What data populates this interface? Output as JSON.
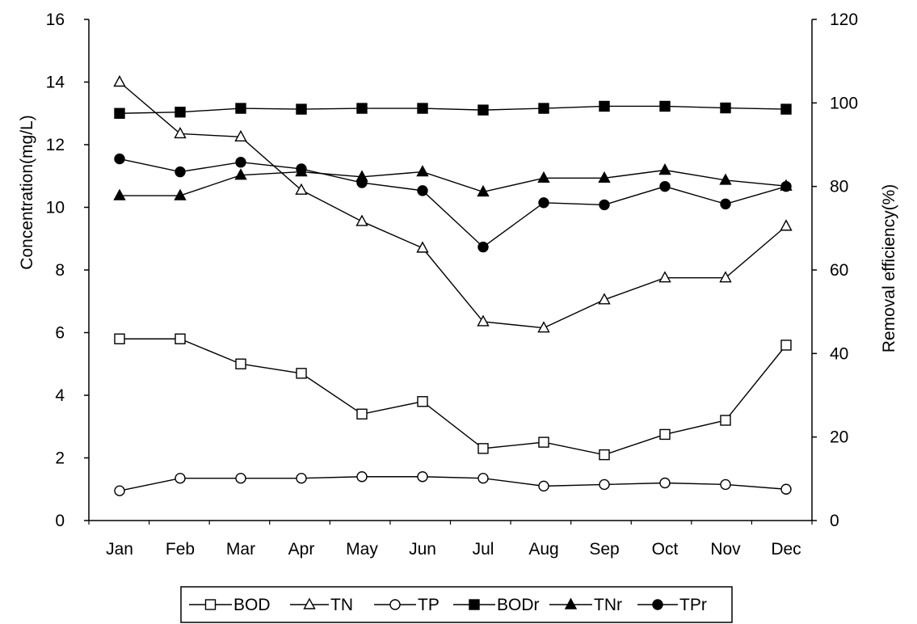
{
  "chart_data": {
    "type": "line",
    "categories": [
      "Jan",
      "Feb",
      "Mar",
      "Apr",
      "May",
      "Jun",
      "Jul",
      "Aug",
      "Sep",
      "Oct",
      "Nov",
      "Dec"
    ],
    "ylabel_left": "Concentration(mg/L)",
    "ylabel_right": "Removal efficiency(%)",
    "ylim_left": [
      0,
      16
    ],
    "yticks_left": [
      0,
      2,
      4,
      6,
      8,
      10,
      12,
      14,
      16
    ],
    "ylim_right": [
      0,
      120
    ],
    "yticks_right": [
      0,
      20,
      40,
      60,
      80,
      100,
      120
    ],
    "grid": false,
    "legend_position": "bottom",
    "series": [
      {
        "name": "BOD",
        "axis": "left",
        "marker": "open-square",
        "values": [
          5.8,
          5.8,
          5.0,
          4.7,
          3.4,
          3.8,
          2.3,
          2.5,
          2.1,
          2.75,
          3.2,
          5.6
        ]
      },
      {
        "name": "TN",
        "axis": "left",
        "marker": "open-triangle",
        "values": [
          14.0,
          12.35,
          12.25,
          10.55,
          9.55,
          8.7,
          6.35,
          6.15,
          7.05,
          7.75,
          7.75,
          9.4
        ]
      },
      {
        "name": "TP",
        "axis": "left",
        "marker": "open-circle",
        "values": [
          0.95,
          1.35,
          1.35,
          1.35,
          1.4,
          1.4,
          1.35,
          1.1,
          1.15,
          1.2,
          1.15,
          1.0
        ]
      },
      {
        "name": "BODr",
        "axis": "right",
        "marker": "filled-square",
        "values": [
          97.5,
          97.8,
          98.7,
          98.5,
          98.7,
          98.7,
          98.3,
          98.7,
          99.2,
          99.2,
          98.8,
          98.5
        ]
      },
      {
        "name": "TNr",
        "axis": "right",
        "marker": "filled-triangle",
        "values": [
          77.8,
          77.8,
          82.7,
          83.5,
          82.3,
          83.5,
          78.7,
          82.0,
          82.0,
          83.9,
          81.5,
          80.1
        ]
      },
      {
        "name": "TPr",
        "axis": "right",
        "marker": "filled-circle",
        "values": [
          86.6,
          83.5,
          85.8,
          84.2,
          80.9,
          79.0,
          65.5,
          76.1,
          75.6,
          80.0,
          75.8,
          80.0
        ]
      }
    ]
  }
}
